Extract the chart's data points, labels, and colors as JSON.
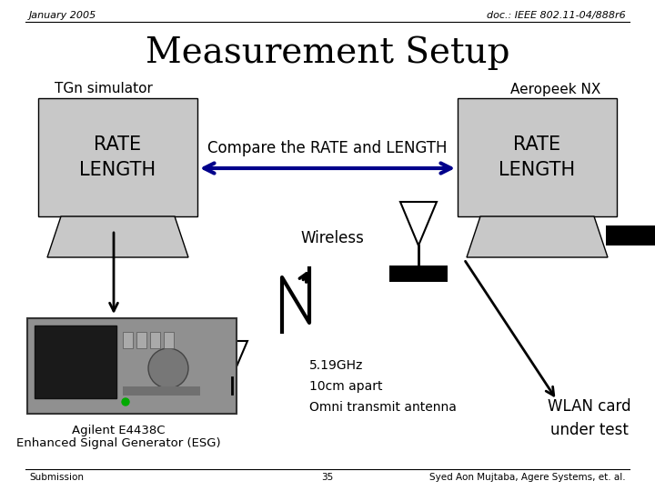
{
  "title": "Measurement Setup",
  "header_left": "January 2005",
  "header_right": "doc.: IEEE 802.11-04/888r6",
  "footer_left": "Submission",
  "footer_center": "35",
  "footer_right": "Syed Aon Mujtaba, Agere Systems, et. al.",
  "label_tgn": "TGn simulator",
  "label_aeropeek": "Aeropeek NX",
  "label_rate_length_left": "RATE\nLENGTH",
  "label_rate_length_right": "RATE\nLENGTH",
  "label_compare": "Compare the RATE and LENGTH",
  "label_wireless": "Wireless",
  "label_freq": "5.19GHz\n10cm apart\nOmni transmit antenna",
  "label_wlan": "WLAN card\nunder test",
  "label_agilent_1": "Agilent E4438C",
  "label_agilent_2": "Enhanced Signal Generator (ESG)",
  "bg_color": "#ffffff",
  "gray_color": "#c8c8c8",
  "black": "#000000",
  "blue_arrow": "#00008B"
}
